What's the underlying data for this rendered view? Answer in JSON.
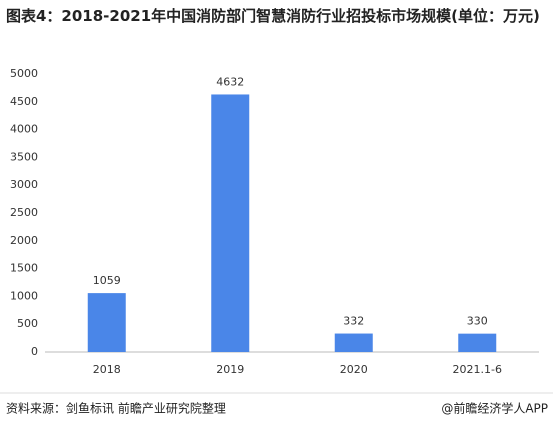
{
  "chart_data": {
    "type": "bar",
    "title": "图表4：2018-2021年中国消防部门智慧消防行业招投标市场规模(单位：万元)",
    "categories": [
      "2018",
      "2019",
      "2020",
      "2021.1-6"
    ],
    "values": [
      1059,
      4632,
      332,
      330
    ],
    "color": "#4a86e8",
    "ylim": [
      0,
      5000
    ],
    "yticks": [
      0,
      500,
      1000,
      1500,
      2000,
      2500,
      3000,
      3500,
      4000,
      4500,
      5000
    ],
    "grid": false,
    "source": "资料来源：剑鱼标讯 前瞻产业研究院整理",
    "credit": "@前瞻经济学人APP"
  }
}
